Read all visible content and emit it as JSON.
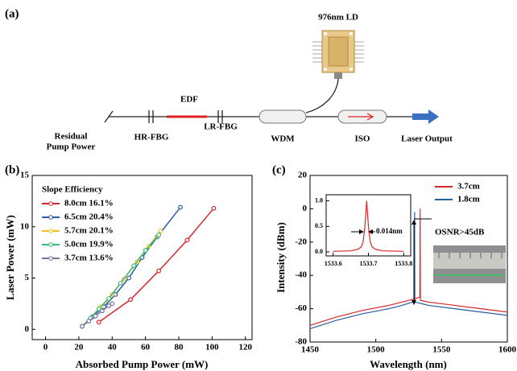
{
  "diagram": {
    "panel_label": "(a)",
    "ld": "976nm LD",
    "edf": "EDF",
    "residual": [
      "Residual",
      "Pump Power"
    ],
    "hr_fbg": "HR-FBG",
    "lr_fbg": "LR-FBG",
    "wdm": "WDM",
    "iso": "ISO",
    "output": "Laser Output"
  },
  "chart_data": [
    {
      "type": "line",
      "panel_label": "(b)",
      "xlabel": "Absorbed Pump Power (mW)",
      "ylabel": "Laser Power (mW)",
      "xlim": [
        -8,
        124
      ],
      "xticks": [
        0,
        20,
        40,
        60,
        80,
        100,
        120
      ],
      "ylim": [
        -1,
        15
      ],
      "yticks": [
        0,
        5,
        10,
        15
      ],
      "markers": true,
      "legend": "upper left",
      "legend_title": "Slope Efficiency",
      "series": [
        {
          "name": "8.0cm 16.1%",
          "color": "#d9262b",
          "x": [
            32,
            51,
            68,
            85,
            101
          ],
          "values": [
            0.7,
            2.9,
            5.7,
            8.7,
            11.8
          ]
        },
        {
          "name": "6.5cm 20.4%",
          "color": "#2b5c9e",
          "x": [
            22,
            28,
            35,
            42,
            50,
            58,
            67,
            81
          ],
          "values": [
            0.3,
            1.2,
            2.2,
            3.4,
            5.0,
            7.0,
            9.0,
            11.9
          ]
        },
        {
          "name": "5.7cm 20.1%",
          "color": "#f2c21b",
          "x": [
            22,
            27,
            33,
            40,
            47,
            55,
            62,
            69
          ],
          "values": [
            0.3,
            1.1,
            2.2,
            3.4,
            4.9,
            6.6,
            8.1,
            9.6
          ]
        },
        {
          "name": "5.0cm 19.9%",
          "color": "#3cb878",
          "x": [
            22,
            27,
            32,
            38,
            45,
            53,
            60,
            68
          ],
          "values": [
            0.3,
            1.1,
            2.0,
            3.0,
            4.5,
            6.2,
            7.7,
            9.2
          ]
        },
        {
          "name": "3.7cm 13.6%",
          "color": "#7a6f9a",
          "x": [
            22,
            26,
            30,
            34,
            38,
            40
          ],
          "values": [
            0.3,
            0.8,
            1.3,
            1.8,
            2.3,
            2.5
          ]
        }
      ]
    },
    {
      "type": "line",
      "panel_label": "(c)",
      "xlabel": "Wavelength (nm)",
      "ylabel": "Intensity (dBm)",
      "xlim": [
        1450,
        1600
      ],
      "xticks": [
        1450,
        1500,
        1550,
        1600
      ],
      "ylim": [
        -80,
        20
      ],
      "yticks": [
        -80,
        -60,
        -40,
        -20,
        0,
        20
      ],
      "markers": false,
      "legend": "upper right",
      "annotations": [
        "OSNR>45dB"
      ],
      "series": [
        {
          "name": "3.7cm",
          "color": "#d9262b",
          "x": [
            1450,
            1470,
            1490,
            1510,
            1520,
            1530,
            1533.5,
            1533.7,
            1533.9,
            1540,
            1560,
            1580,
            1600
          ],
          "values": [
            -70,
            -65,
            -61,
            -58,
            -56,
            -54,
            -53,
            0,
            -55,
            -56,
            -58,
            -60,
            -62
          ]
        },
        {
          "name": "1.8cm",
          "color": "#2b5c9e",
          "x": [
            1450,
            1470,
            1490,
            1510,
            1520,
            1528,
            1529.3,
            1529.5,
            1529.7,
            1535,
            1540,
            1560,
            1580,
            1600
          ],
          "values": [
            -72,
            -67,
            -63,
            -60,
            -58,
            -56,
            -56,
            -2,
            -56,
            -57,
            -58,
            -60,
            -62,
            -64
          ]
        }
      ]
    },
    {
      "type": "line",
      "xlim": [
        1533.58,
        1533.82
      ],
      "xticks": [
        1533.6,
        1533.7,
        1533.8
      ],
      "ylim": [
        -0.08,
        1.12
      ],
      "yticks": [
        {
          "value": 0,
          "label": "0.0"
        },
        0.5,
        {
          "value": 1,
          "label": "1.0"
        }
      ],
      "markers": false,
      "annotations": [
        "0.014nm"
      ],
      "series": [
        {
          "color": "#d9262b",
          "x": [
            1533.6,
            1533.65,
            1533.67,
            1533.68,
            1533.685,
            1533.69,
            1533.695,
            1533.7,
            1533.705,
            1533.71,
            1533.72,
            1533.74,
            1533.8
          ],
          "values": [
            0.01,
            0.02,
            0.05,
            0.1,
            0.2,
            0.5,
            1.0,
            0.5,
            0.2,
            0.1,
            0.05,
            0.02,
            0.01
          ]
        }
      ]
    }
  ]
}
